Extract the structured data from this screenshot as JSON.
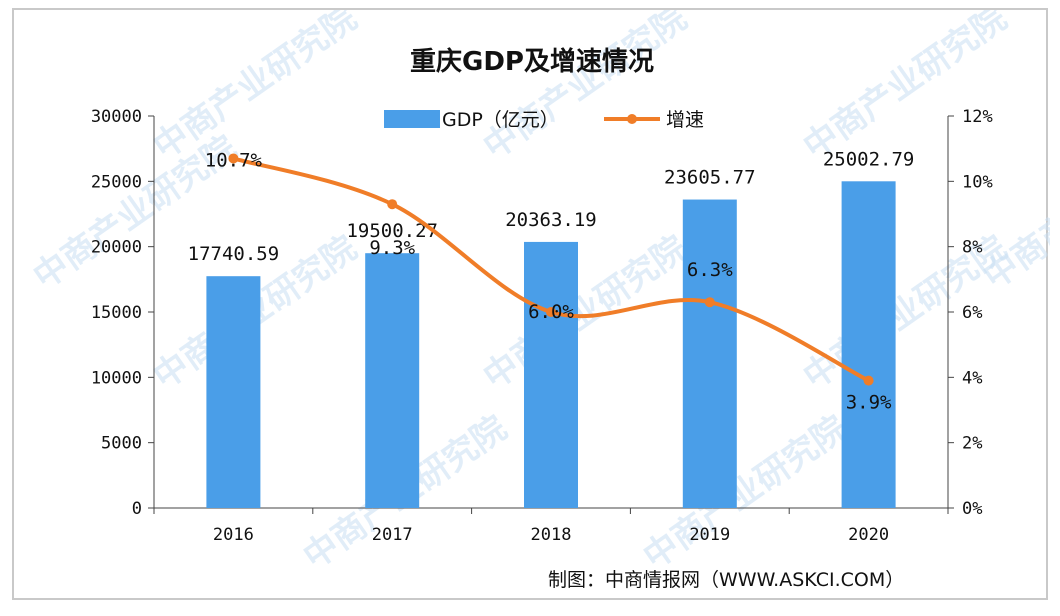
{
  "chart_data": {
    "type": "bar+line",
    "title": "重庆GDP及增速情况",
    "categories": [
      "2016",
      "2017",
      "2018",
      "2019",
      "2020"
    ],
    "series": [
      {
        "name": "GDP（亿元）",
        "type": "bar",
        "axis": "left",
        "values": [
          17740.59,
          19500.27,
          20363.19,
          23605.77,
          25002.79
        ],
        "labels": [
          "17740.59",
          "19500.27",
          "20363.19",
          "23605.77",
          "25002.79"
        ],
        "color": "#4a9ee8"
      },
      {
        "name": "增速",
        "type": "line",
        "axis": "right",
        "values": [
          10.7,
          9.3,
          6.0,
          6.3,
          3.9
        ],
        "labels": [
          "10.7%",
          "9.3%",
          "6.0%",
          "6.3%",
          "3.9%"
        ],
        "color": "#f07d28"
      }
    ],
    "y_left": {
      "min": 0,
      "max": 30000,
      "ticks": [
        "0",
        "5000",
        "10000",
        "15000",
        "20000",
        "25000",
        "30000"
      ]
    },
    "y_right": {
      "min": 0,
      "max": 12,
      "ticks": [
        "0%",
        "2%",
        "4%",
        "6%",
        "8%",
        "10%",
        "12%"
      ]
    },
    "legend_position": "top",
    "grid": false
  },
  "source": "制图：中商情报网（WWW.ASKCI.COM）",
  "watermark": "中商产业研究院"
}
